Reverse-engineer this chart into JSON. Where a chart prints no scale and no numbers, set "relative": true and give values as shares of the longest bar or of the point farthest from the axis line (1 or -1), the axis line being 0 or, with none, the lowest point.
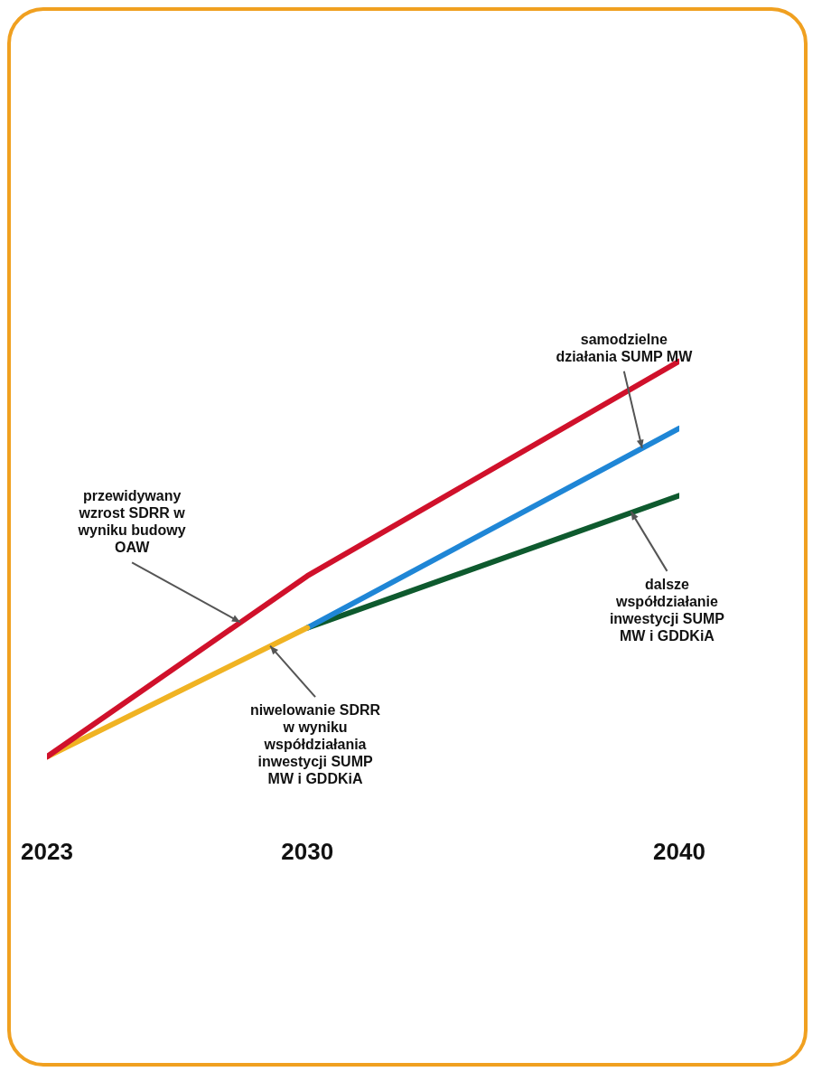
{
  "chart_data": {
    "type": "line",
    "relative": true,
    "x": [
      2023,
      2030,
      2040
    ],
    "xlim": [
      2023,
      2040
    ],
    "xticks": [
      2023,
      2030,
      2040
    ],
    "series": [
      {
        "color": "#d0112b",
        "values": [
          0,
          0.457,
          1
        ]
      },
      {
        "color": "#f0b323",
        "values": [
          0,
          0.326,
          null
        ]
      },
      {
        "color": "#1f86d6",
        "values": [
          null,
          0.326,
          0.83
        ]
      },
      {
        "color": "#0e5a2e",
        "values": [
          null,
          0.326,
          0.66
        ]
      }
    ],
    "annotations": [
      {
        "text": "przewidywany wzrost SDRR w wyniku budowy OAW",
        "x": 2028.2,
        "y": 0.34
      },
      {
        "text": "niwelowanie SDRR w wyniku współdziałania inwestycji SUMP MW i GDDKiA",
        "x": 2029,
        "y": 0.28
      },
      {
        "text": "dalsze współdziałanie inwestycji SUMP MW i GDDKiA",
        "x": 2038.7,
        "y": 0.62
      },
      {
        "text": "samodzielne działania SUMP MW",
        "x": 2039,
        "y": 0.78
      }
    ],
    "grid": false,
    "legend": false,
    "marker": "none",
    "line_style": "solid"
  }
}
